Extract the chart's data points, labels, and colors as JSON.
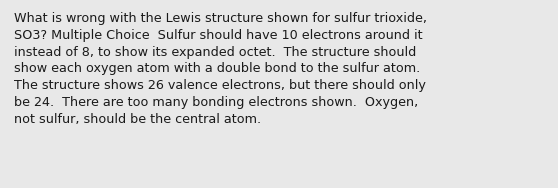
{
  "text": "What is wrong with the Lewis structure shown for sulfur trioxide,\nSO3? Multiple Choice  Sulfur should have 10 electrons around it\ninstead of 8, to show its expanded octet.  The structure should\nshow each oxygen atom with a double bond to the sulfur atom.\nThe structure shows 26 valence electrons, but there should only\nbe 24.  There are too many bonding electrons shown.  Oxygen,\nnot sulfur, should be the central atom.",
  "background_color": "#e8e8e8",
  "text_color": "#1a1a1a",
  "font_size": 9.2,
  "fig_width": 5.58,
  "fig_height": 1.88,
  "dpi": 100
}
